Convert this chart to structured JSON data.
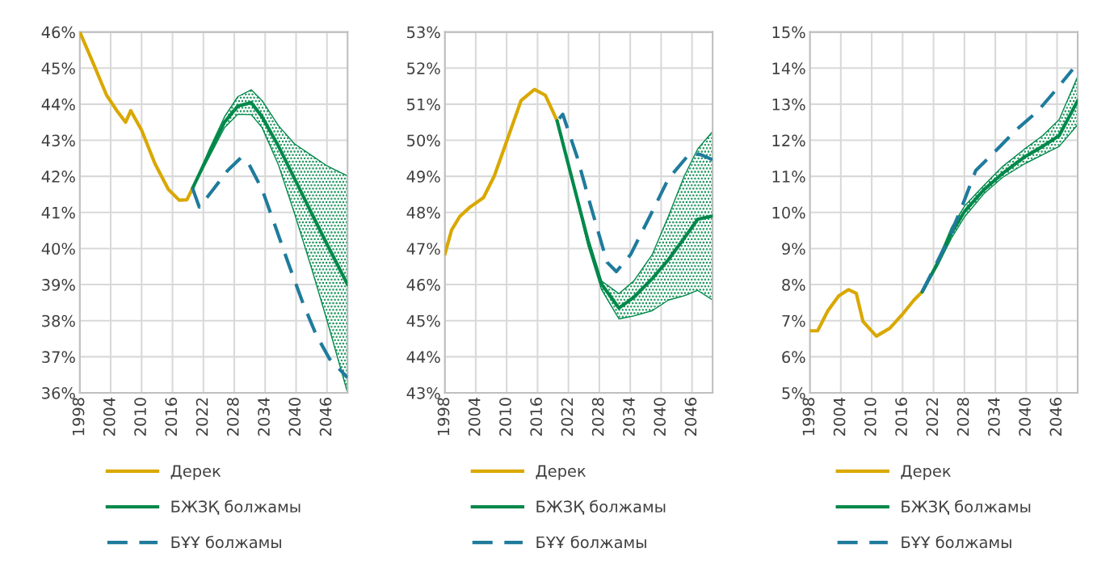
{
  "chart_data": [
    {
      "type": "line",
      "xlim": [
        1998,
        2050
      ],
      "xticks": [
        1998,
        2004,
        2010,
        2016,
        2022,
        2028,
        2034,
        2040,
        2046
      ],
      "ylim": [
        36,
        46
      ],
      "yticks": [
        {
          "value": 36,
          "label": "36%"
        },
        {
          "value": 37,
          "label": "37%"
        },
        {
          "value": 38,
          "label": "38%"
        },
        {
          "value": 39,
          "label": "39%"
        },
        {
          "value": 40,
          "label": "40%"
        },
        {
          "value": 41,
          "label": "41%"
        },
        {
          "value": 42,
          "label": "42%"
        },
        {
          "value": 43,
          "label": "43%"
        },
        {
          "value": 44,
          "label": "44%"
        },
        {
          "value": 45,
          "label": "45%"
        },
        {
          "value": 46,
          "label": "46%"
        }
      ],
      "grid": true,
      "legend": "bottom",
      "series": [
        {
          "name": "Дерек",
          "color": "#d9a800",
          "line_style": "solid",
          "x": [
            1998,
            2000.8,
            2003.2,
            2005.3,
            2006.9,
            2007.9,
            2010,
            2012.6,
            2015.2,
            2017.3,
            2018.8,
            2019.9
          ],
          "values": [
            46.0,
            45.07,
            44.25,
            43.8,
            43.5,
            43.82,
            43.28,
            42.35,
            41.64,
            41.34,
            41.35,
            41.67
          ]
        },
        {
          "name": "БЖЗҚ болжамы",
          "color": "#00884a",
          "line_style": "solid",
          "x": [
            2019.9,
            2023,
            2026.1,
            2028.7,
            2031.3,
            2033.4,
            2036.6,
            2039.7,
            2042.8,
            2045.9,
            2050
          ],
          "values": [
            41.67,
            42.6,
            43.5,
            43.95,
            44.04,
            43.65,
            42.83,
            41.94,
            41.04,
            40.15,
            39.0
          ],
          "lower": [
            41.67,
            42.5,
            43.35,
            43.72,
            43.71,
            43.35,
            42.31,
            40.97,
            39.55,
            38.06,
            36.0
          ],
          "upper": [
            41.67,
            42.7,
            43.65,
            44.21,
            44.4,
            44.1,
            43.4,
            42.9,
            42.6,
            42.3,
            42.01
          ]
        },
        {
          "name": "БҰҰ болжамы",
          "color": "#1f7b9c",
          "line_style": "dashed",
          "x": [
            2019.9,
            2021.2,
            2023.5,
            2026.7,
            2029.3,
            2030.8,
            2033.4,
            2036,
            2038.6,
            2041.3,
            2043.9,
            2046.5,
            2050
          ],
          "values": [
            41.67,
            41.15,
            41.56,
            42.16,
            42.52,
            42.35,
            41.64,
            40.6,
            39.55,
            38.5,
            37.61,
            36.94,
            36.42
          ]
        }
      ]
    },
    {
      "type": "line",
      "xlim": [
        1998,
        2050
      ],
      "xticks": [
        1998,
        2004,
        2010,
        2016,
        2022,
        2028,
        2034,
        2040,
        2046
      ],
      "ylim": [
        43,
        53
      ],
      "yticks": [
        {
          "value": 43,
          "label": "43%"
        },
        {
          "value": 44,
          "label": "44%"
        },
        {
          "value": 45,
          "label": "45%"
        },
        {
          "value": 46,
          "label": "46%"
        },
        {
          "value": 47,
          "label": "47%"
        },
        {
          "value": 48,
          "label": "48%"
        },
        {
          "value": 49,
          "label": "49%"
        },
        {
          "value": 50,
          "label": "50%"
        },
        {
          "value": 51,
          "label": "51%"
        },
        {
          "value": 52,
          "label": "52%"
        },
        {
          "value": 53,
          "label": "53%"
        }
      ],
      "grid": true,
      "legend": "bottom",
      "series": [
        {
          "name": "Дерек",
          "color": "#d9a800",
          "line_style": "solid",
          "x": [
            1998,
            1999.3,
            2000.9,
            2002.9,
            2005.5,
            2007.6,
            2010.2,
            2012.8,
            2015.4,
            2017.5,
            2019.8
          ],
          "values": [
            46.84,
            47.51,
            47.89,
            48.15,
            48.41,
            49.01,
            50.05,
            51.1,
            51.41,
            51.25,
            50.54
          ]
        },
        {
          "name": "БЖЗҚ болжамы",
          "color": "#00884a",
          "line_style": "solid",
          "x": [
            2019.8,
            2022.7,
            2025.8,
            2028.4,
            2031.8,
            2034.7,
            2038.3,
            2041.4,
            2044.5,
            2047.1,
            2050
          ],
          "values": [
            50.54,
            48.93,
            47.22,
            46.02,
            45.35,
            45.65,
            46.17,
            46.69,
            47.29,
            47.81,
            47.9
          ],
          "lower": [
            50.54,
            48.9,
            47.07,
            45.87,
            45.05,
            45.13,
            45.28,
            45.57,
            45.69,
            45.84,
            45.57
          ],
          "upper": [
            50.54,
            48.95,
            47.29,
            46.1,
            45.75,
            46.1,
            46.84,
            47.89,
            49.01,
            49.76,
            50.24
          ]
        },
        {
          "name": "БҰҰ болжамы",
          "color": "#1f7b9c",
          "line_style": "dashed",
          "x": [
            2020.2,
            2020.9,
            2023.7,
            2026.3,
            2029.5,
            2031.3,
            2034.1,
            2037.8,
            2041.4,
            2045.6,
            2047.7,
            2050
          ],
          "values": [
            50.6,
            50.72,
            49.53,
            48.19,
            46.62,
            46.36,
            46.84,
            47.89,
            48.93,
            49.64,
            49.6,
            49.46
          ]
        }
      ]
    },
    {
      "type": "line",
      "xlim": [
        1998,
        2050
      ],
      "xticks": [
        1998,
        2004,
        2010,
        2016,
        2022,
        2028,
        2034,
        2040,
        2046
      ],
      "ylim": [
        5,
        15
      ],
      "yticks": [
        {
          "value": 5,
          "label": "5%"
        },
        {
          "value": 6,
          "label": "6%"
        },
        {
          "value": 7,
          "label": "7%"
        },
        {
          "value": 8,
          "label": "8%"
        },
        {
          "value": 9,
          "label": "9%"
        },
        {
          "value": 10,
          "label": "10%"
        },
        {
          "value": 11,
          "label": "11%"
        },
        {
          "value": 12,
          "label": "12%"
        },
        {
          "value": 13,
          "label": "13%"
        },
        {
          "value": 14,
          "label": "14%"
        },
        {
          "value": 15,
          "label": "15%"
        }
      ],
      "grid": true,
      "legend": "bottom",
      "series": [
        {
          "name": "Дерек",
          "color": "#d9a800",
          "line_style": "solid",
          "x": [
            1998,
            1999.5,
            2001.5,
            2003.6,
            2005.5,
            2007,
            2008.3,
            2010.9,
            2013.5,
            2016.1,
            2018.2,
            2019.8
          ],
          "values": [
            6.72,
            6.72,
            7.28,
            7.69,
            7.86,
            7.76,
            6.98,
            6.57,
            6.79,
            7.2,
            7.57,
            7.8
          ]
        },
        {
          "name": "БЖЗҚ болжамы",
          "color": "#00884a",
          "line_style": "solid",
          "x": [
            2019.8,
            2022.9,
            2025.5,
            2028.1,
            2031.8,
            2035.4,
            2039.6,
            2043.2,
            2046.4,
            2050
          ],
          "values": [
            7.8,
            8.62,
            9.44,
            10.04,
            10.63,
            11.08,
            11.53,
            11.83,
            12.13,
            13.1
          ],
          "lower": [
            7.8,
            8.55,
            9.29,
            9.89,
            10.52,
            10.97,
            11.34,
            11.6,
            11.83,
            12.43
          ],
          "upper": [
            7.8,
            8.7,
            9.59,
            10.19,
            10.75,
            11.27,
            11.75,
            12.13,
            12.57,
            13.77
          ]
        },
        {
          "name": "БҰҰ болжамы",
          "color": "#1f7b9c",
          "line_style": "dashed",
          "x": [
            2019.8,
            2022.4,
            2025,
            2027.6,
            2030.2,
            2033.9,
            2038,
            2042.2,
            2045.8,
            2049
          ],
          "values": [
            7.8,
            8.54,
            9.29,
            10.19,
            11.16,
            11.68,
            12.28,
            12.8,
            13.4,
            13.96
          ]
        }
      ]
    }
  ]
}
